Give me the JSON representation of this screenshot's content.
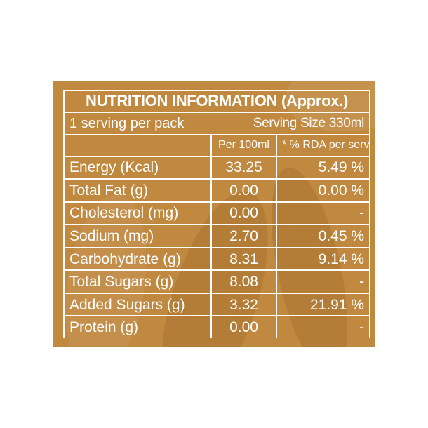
{
  "table": {
    "title": "NUTRITION INFORMATION (Approx.)",
    "servings": "1 serving per pack",
    "serving_size": "Serving Size 330ml",
    "col_per100": "Per 100ml",
    "col_rda": "* % RDA per serve",
    "rows": [
      {
        "nutrient": "Energy (Kcal)",
        "per100": "33.25",
        "rda": "5.49 %"
      },
      {
        "nutrient": "Total Fat (g)",
        "per100": "0.00",
        "rda": "0.00 %"
      },
      {
        "nutrient": "Cholesterol (mg)",
        "per100": "0.00",
        "rda": "-"
      },
      {
        "nutrient": "Sodium (mg)",
        "per100": "2.70",
        "rda": "0.45 %"
      },
      {
        "nutrient": "Carbohydrate (g)",
        "per100": "8.31",
        "rda": "9.14 %"
      },
      {
        "nutrient": "Total Sugars (g)",
        "per100": "8.08",
        "rda": "-"
      },
      {
        "nutrient": "Added Sugars (g)",
        "per100": "3.32",
        "rda": "21.91 %"
      },
      {
        "nutrient": "Protein (g)",
        "per100": "0.00",
        "rda": "-"
      }
    ]
  },
  "colors": {
    "background": "#c1893f",
    "text": "#ffffff"
  }
}
